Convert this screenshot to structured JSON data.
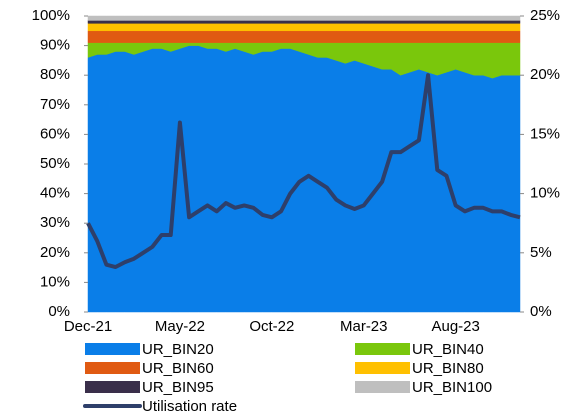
{
  "chart_data": {
    "type": "area",
    "stacked": true,
    "categories": [
      "Dec-21",
      null,
      null,
      null,
      null,
      null,
      null,
      null,
      null,
      null,
      "May-22",
      null,
      null,
      null,
      null,
      null,
      null,
      null,
      null,
      null,
      "Oct-22",
      null,
      null,
      null,
      null,
      null,
      null,
      null,
      null,
      null,
      "Mar-23",
      null,
      null,
      null,
      null,
      null,
      null,
      null,
      null,
      null,
      "Aug-23",
      null,
      null,
      null,
      null,
      null,
      null,
      null
    ],
    "ylim": [
      0,
      100
    ],
    "yticks": [
      {
        "value": 0,
        "label": "0%"
      },
      {
        "value": 10,
        "label": "10%"
      },
      {
        "value": 20,
        "label": "20%"
      },
      {
        "value": 30,
        "label": "30%"
      },
      {
        "value": 40,
        "label": "40%"
      },
      {
        "value": 50,
        "label": "50%"
      },
      {
        "value": 60,
        "label": "60%"
      },
      {
        "value": 70,
        "label": "70%"
      },
      {
        "value": 80,
        "label": "80%"
      },
      {
        "value": 90,
        "label": "90%"
      },
      {
        "value": 100,
        "label": "100%"
      }
    ],
    "y2lim": [
      0,
      25
    ],
    "y2ticks": [
      {
        "value": 0,
        "label": "0%"
      },
      {
        "value": 5,
        "label": "5%"
      },
      {
        "value": 10,
        "label": "10%"
      },
      {
        "value": 15,
        "label": "15%"
      },
      {
        "value": 20,
        "label": "20%"
      },
      {
        "value": 25,
        "label": "25%"
      }
    ],
    "series": [
      {
        "name": "UR_BIN20",
        "color": "#0a7ee8",
        "values": [
          86,
          87,
          87,
          88,
          88,
          87,
          88,
          89,
          89,
          88,
          89,
          90,
          90,
          89,
          89,
          88,
          89,
          88,
          87,
          88,
          88,
          89,
          89,
          88,
          87,
          86,
          86,
          85,
          84,
          85,
          84,
          83,
          82,
          82,
          80,
          81,
          82,
          81,
          80,
          81,
          82,
          81,
          80,
          80,
          79,
          80,
          80,
          80
        ]
      },
      {
        "name": "UR_BIN40",
        "color": "#7ac70c",
        "values": [
          5,
          4,
          4,
          3,
          3,
          4,
          3,
          2,
          2,
          3,
          2,
          1,
          1,
          2,
          2,
          3,
          2,
          3,
          4,
          3,
          3,
          2,
          2,
          3,
          4,
          5,
          5,
          6,
          7,
          6,
          7,
          8,
          9,
          9,
          11,
          10,
          9,
          10,
          11,
          10,
          9,
          10,
          11,
          11,
          12,
          11,
          11,
          11
        ]
      },
      {
        "name": "UR_BIN60",
        "color": "#e05a12",
        "values": [
          4,
          4,
          4,
          4,
          4,
          4,
          4,
          4,
          4,
          4,
          4,
          4,
          4,
          4,
          4,
          4,
          4,
          4,
          4,
          4,
          4,
          4,
          4,
          4,
          4,
          4,
          4,
          4,
          4,
          4,
          4,
          4,
          4,
          4,
          4,
          4,
          4,
          4,
          4,
          4,
          4,
          4,
          4,
          4,
          4,
          4,
          4,
          4
        ]
      },
      {
        "name": "UR_BIN80",
        "color": "#ffc000",
        "values": [
          2.5,
          2.5,
          2.5,
          2.5,
          2.5,
          2.5,
          2.5,
          2.5,
          2.5,
          2.5,
          2.5,
          2.5,
          2.5,
          2.5,
          2.5,
          2.5,
          2.5,
          2.5,
          2.5,
          2.5,
          2.5,
          2.5,
          2.5,
          2.5,
          2.5,
          2.5,
          2.5,
          2.5,
          2.5,
          2.5,
          2.5,
          2.5,
          2.5,
          2.5,
          2.5,
          2.5,
          2.5,
          2.5,
          2.5,
          2.5,
          2.5,
          2.5,
          2.5,
          2.5,
          2.5,
          2.5,
          2.5,
          2.5
        ]
      },
      {
        "name": "UR_BIN95",
        "color": "#3a2f4a",
        "values": [
          1,
          1,
          1,
          1,
          1,
          1,
          1,
          1,
          1,
          1,
          1,
          1,
          1,
          1,
          1,
          1,
          1,
          1,
          1,
          1,
          1,
          1,
          1,
          1,
          1,
          1,
          1,
          1,
          1,
          1,
          1,
          1,
          1,
          1,
          1,
          1,
          1,
          1,
          1,
          1,
          1,
          1,
          1,
          1,
          1,
          1,
          1,
          1
        ]
      },
      {
        "name": "UR_BIN100",
        "color": "#bfbfbf",
        "values": [
          1.5,
          1.5,
          1.5,
          1.5,
          1.5,
          1.5,
          1.5,
          1.5,
          1.5,
          1.5,
          1.5,
          1.5,
          1.5,
          1.5,
          1.5,
          1.5,
          1.5,
          1.5,
          1.5,
          1.5,
          1.5,
          1.5,
          1.5,
          1.5,
          1.5,
          1.5,
          1.5,
          1.5,
          1.5,
          1.5,
          1.5,
          1.5,
          1.5,
          1.5,
          1.5,
          1.5,
          1.5,
          1.5,
          1.5,
          1.5,
          1.5,
          1.5,
          1.5,
          1.5,
          1.5,
          1.5,
          1.5,
          1.5
        ]
      },
      {
        "name": "Utilisation rate",
        "color": "#2e3f6a",
        "type": "line",
        "axis": "y2",
        "values": [
          7.5,
          6,
          4,
          3.8,
          4.2,
          4.5,
          5,
          5.5,
          6.5,
          6.5,
          16,
          8,
          8.5,
          9,
          8.5,
          9.2,
          8.8,
          9,
          8.8,
          8.2,
          8,
          8.5,
          10,
          11,
          11.5,
          11,
          10.5,
          9.5,
          9,
          8.7,
          9,
          10,
          11,
          13.5,
          13.5,
          14,
          14.5,
          20,
          12,
          11.5,
          9,
          8.5,
          8.8,
          8.8,
          8.5,
          8.5,
          8.2,
          8
        ]
      }
    ]
  }
}
